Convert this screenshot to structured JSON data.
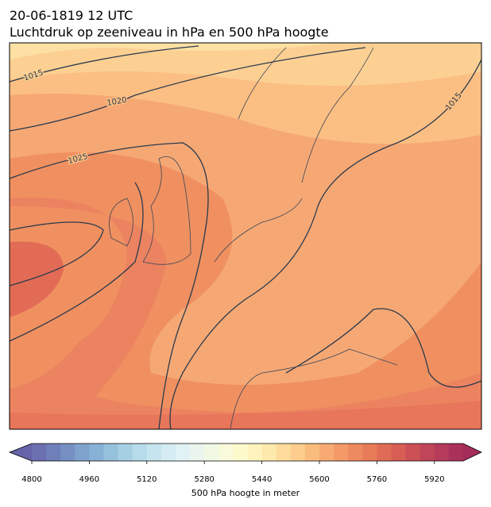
{
  "header": {
    "title": "20-06-1819 12 UTC",
    "subtitle": "Luchtdruk op zeeniveau in hPa en 500 hPa hoogte"
  },
  "map": {
    "contour_labels": [
      1015,
      1020,
      1025,
      1015
    ]
  },
  "colorbar": {
    "label": "500 hPa hoogte in meter",
    "lim": [
      4800,
      6000
    ],
    "ticks": [
      4800,
      4960,
      5120,
      5280,
      5440,
      5600,
      5760,
      5920
    ],
    "colors": [
      "#6c6fb0",
      "#6f7fb9",
      "#7690c3",
      "#7ea2cc",
      "#88b2d5",
      "#96c1dc",
      "#a7cfe3",
      "#b6dbea",
      "#c6e4ee",
      "#d4ecf2",
      "#e0f2f3",
      "#eaf5ee",
      "#f1f8e4",
      "#f8fadb",
      "#fcf9cd",
      "#fef3bd",
      "#fee9ac",
      "#fddc9b",
      "#fccd8c",
      "#fabc7d",
      "#f7ab72",
      "#f39a68",
      "#ee8a5f",
      "#e87b58",
      "#e06c55",
      "#d75e55",
      "#cc5157",
      "#c04558",
      "#b53b5a",
      "#aa315a"
    ],
    "extend_colors": [
      "#6564a8",
      "#a32c5a"
    ]
  }
}
